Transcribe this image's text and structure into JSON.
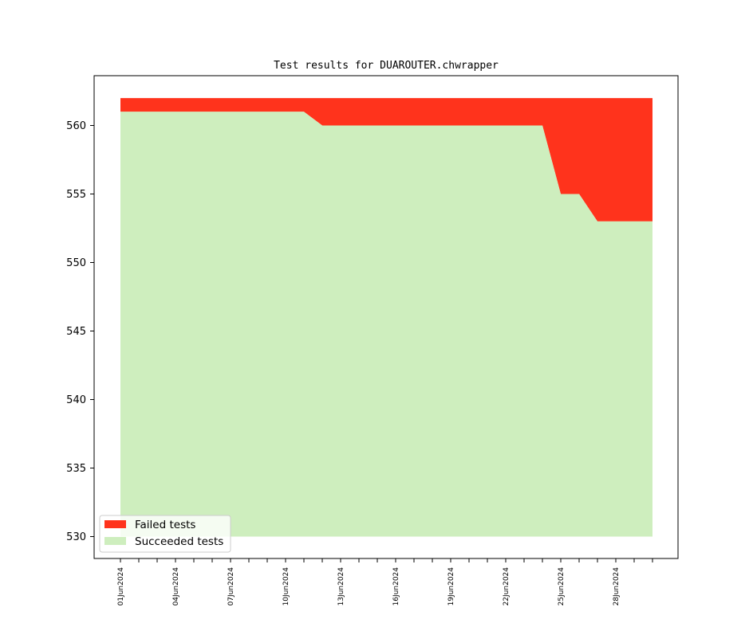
{
  "chart_data": {
    "type": "area",
    "title": "Test results for DUAROUTER.chwrapper",
    "xlabel": "",
    "ylabel": "",
    "ylim": [
      530,
      562
    ],
    "yticks": [
      530,
      535,
      540,
      545,
      550,
      555,
      560
    ],
    "x_ticks_major": [
      "01Jun2024",
      "04Jun2024",
      "07Jun2024",
      "10Jun2024",
      "13Jun2024",
      "16Jun2024",
      "19Jun2024",
      "22Jun2024",
      "25Jun2024",
      "28Jun2024"
    ],
    "x": [
      "01Jun2024",
      "02Jun2024",
      "03Jun2024",
      "04Jun2024",
      "05Jun2024",
      "06Jun2024",
      "07Jun2024",
      "08Jun2024",
      "09Jun2024",
      "10Jun2024",
      "11Jun2024",
      "12Jun2024",
      "13Jun2024",
      "14Jun2024",
      "15Jun2024",
      "16Jun2024",
      "17Jun2024",
      "18Jun2024",
      "19Jun2024",
      "20Jun2024",
      "21Jun2024",
      "22Jun2024",
      "23Jun2024",
      "24Jun2024",
      "25Jun2024",
      "26Jun2024",
      "27Jun2024",
      "28Jun2024",
      "29Jun2024",
      "30Jun2024"
    ],
    "series": [
      {
        "name": "Succeeded tests",
        "color": "#ceeebe",
        "values": [
          561,
          561,
          561,
          561,
          561,
          561,
          561,
          561,
          561,
          561,
          561,
          560,
          560,
          560,
          560,
          560,
          560,
          560,
          560,
          560,
          560,
          560,
          560,
          560,
          555,
          555,
          553,
          553,
          553,
          553
        ]
      },
      {
        "name": "Failed tests",
        "color": "#ff331c",
        "values": [
          1,
          1,
          1,
          1,
          1,
          1,
          1,
          1,
          1,
          1,
          1,
          2,
          2,
          2,
          2,
          2,
          2,
          2,
          2,
          2,
          2,
          2,
          2,
          2,
          7,
          7,
          9,
          9,
          9,
          9
        ]
      }
    ],
    "legend": {
      "position": "lower-left"
    },
    "grid": false
  }
}
